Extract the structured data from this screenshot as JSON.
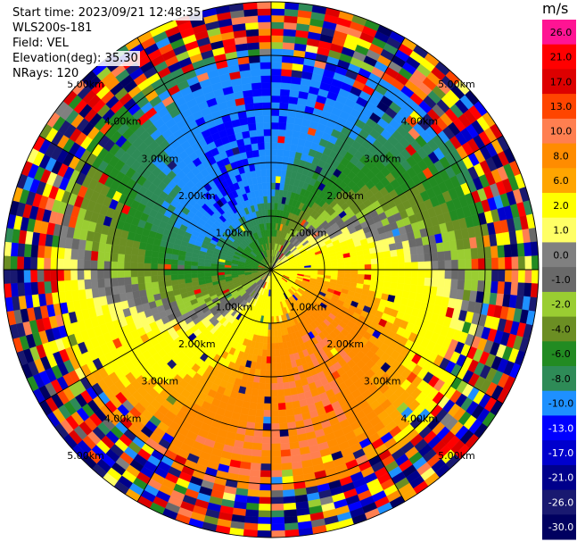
{
  "header": {
    "start_time": "Start time: 2023/09/21 12:48:35",
    "instrument": "WLS200s-181",
    "field": "Field: VEL",
    "elevation": "Elevation(deg): 35.30",
    "nrays": "NRays: 120"
  },
  "chart_data": {
    "type": "heatmap",
    "projection": "polar-ppi",
    "field": "VEL",
    "units": "m/s",
    "n_rays": 120,
    "max_range_km": 5.0,
    "range_rings_km": [
      1.0,
      2.0,
      3.0,
      4.0,
      5.0
    ],
    "ring_labels": [
      "1.00km",
      "2.00km",
      "3.00km",
      "4.00km",
      "5.00km"
    ],
    "radial_spokes_deg": [
      0,
      30,
      60,
      90,
      120,
      150,
      180,
      210,
      240,
      270,
      300,
      330
    ],
    "description_values": {
      "approach_max": -10.0,
      "recede_max": 10.0,
      "approach_azimuth_deg": 300,
      "recede_azimuth_deg": 120
    },
    "colorbar": {
      "title": "m/s",
      "tick_labels": [
        "26.0",
        "21.0",
        "17.0",
        "13.0",
        "10.0",
        "8.0",
        "6.0",
        "2.0",
        "1.0",
        "0.0",
        "-1.0",
        "-2.0",
        "-4.0",
        "-6.0",
        "-8.0",
        "-10.0",
        "-13.0",
        "-17.0",
        "-21.0",
        "-26.0",
        "-30.0"
      ],
      "colors": [
        "#ff1493",
        "#ff0000",
        "#dd0000",
        "#ff4500",
        "#ff7f50",
        "#ff8c00",
        "#ffa500",
        "#ffff00",
        "#ffff66",
        "#808080",
        "#696969",
        "#9acd32",
        "#6b8e23",
        "#228b22",
        "#2e8b57",
        "#1e90ff",
        "#0000ff",
        "#0000cd",
        "#00008b",
        "#191970",
        "#000060"
      ]
    }
  }
}
